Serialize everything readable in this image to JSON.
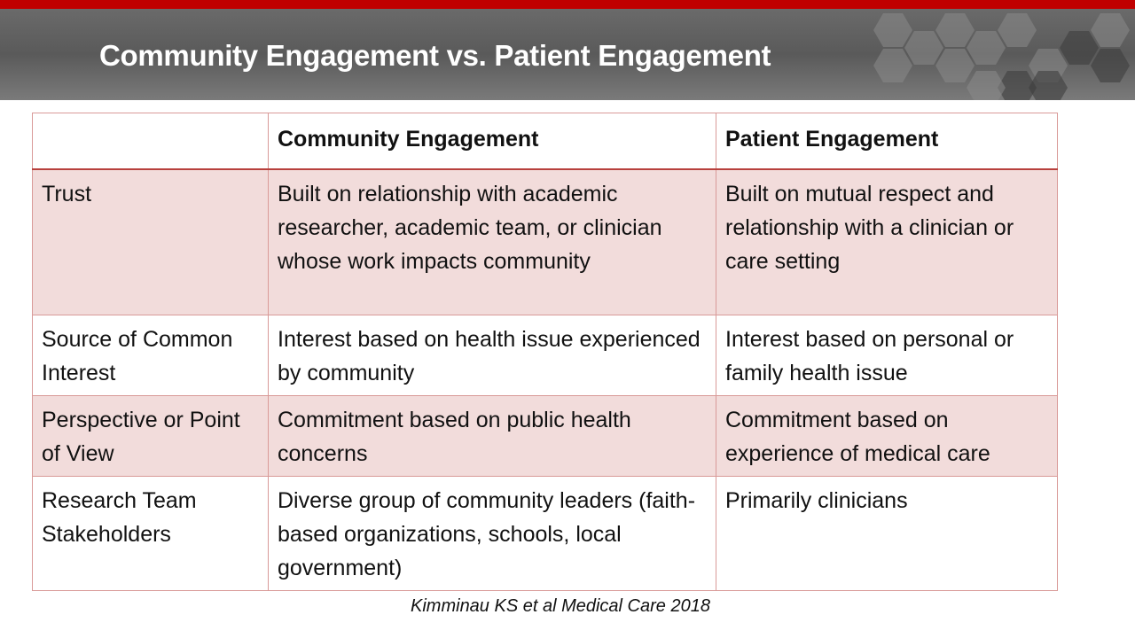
{
  "slide": {
    "title": "Community Engagement vs. Patient Engagement",
    "citation": "Kimminau KS et al Medical Care 2018"
  },
  "table": {
    "headers": [
      "",
      "Community Engagement",
      "Patient Engagement"
    ],
    "rows": [
      [
        "Trust",
        "Built on relationship with academic researcher, academic team, or clinician whose work impacts community",
        "Built on mutual respect and relationship with a clinician or care setting"
      ],
      [
        "Source of Common Interest",
        "Interest based on health issue experienced by community",
        "Interest based on personal or family health issue"
      ],
      [
        "Perspective or Point of View",
        "Commitment based on public health concerns",
        "Commitment based on experience of medical care"
      ],
      [
        "Research Team Stakeholders",
        "Diverse group of community leaders (faith-based organizations, schools, local government)",
        "Primarily clinicians"
      ]
    ]
  },
  "colors": {
    "accent": "#c00000",
    "row_fill": "#f2dcdb",
    "header_bg": "#5f5f5f"
  }
}
